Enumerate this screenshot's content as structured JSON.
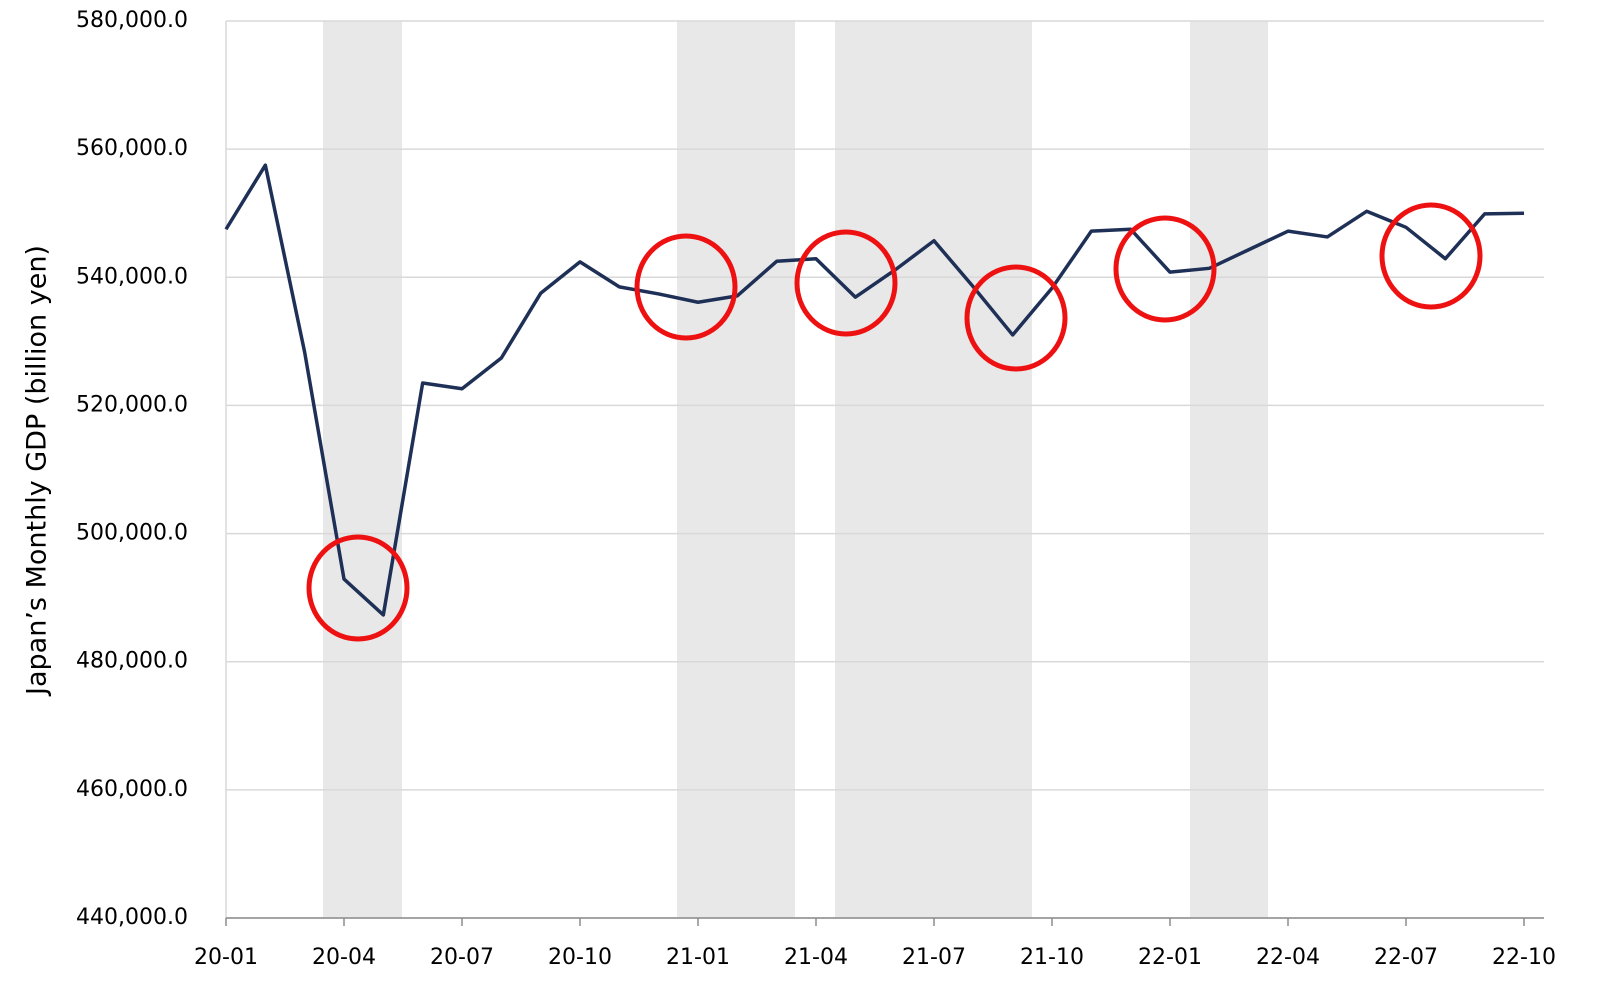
{
  "chart_data": {
    "type": "line",
    "y_label": "Japan’s Monthly GDP (billion yen)",
    "categories": [
      "20-01",
      null,
      null,
      "20-04",
      null,
      null,
      "20-07",
      null,
      null,
      "20-10",
      null,
      null,
      "21-01",
      null,
      null,
      "21-04",
      null,
      null,
      "21-07",
      null,
      null,
      "21-10",
      null,
      null,
      "22-01",
      null,
      null,
      "22-04",
      null,
      null,
      "22-07",
      null,
      null,
      "22-10"
    ],
    "values": [
      547500,
      557500,
      528300,
      492900,
      487300,
      523500,
      522600,
      527400,
      537500,
      542400,
      538500,
      537400,
      536100,
      537100,
      542500,
      542900,
      536900,
      541100,
      545700,
      538500,
      531000,
      538300,
      547200,
      547500,
      540800,
      541400,
      544300,
      547200,
      546300,
      550300,
      547800,
      542900,
      549900,
      550000
    ],
    "color": "#1f3057",
    "ylim": [
      440000,
      580000
    ],
    "yticks": [
      {
        "value": 440000,
        "label": "440,000.0"
      },
      {
        "value": 460000,
        "label": "460,000.0"
      },
      {
        "value": 480000,
        "label": "480,000.0"
      },
      {
        "value": 500000,
        "label": "500,000.0"
      },
      {
        "value": 520000,
        "label": "520,000.0"
      },
      {
        "value": 540000,
        "label": "540,000.0"
      },
      {
        "value": 560000,
        "label": "560,000.0"
      },
      {
        "value": 580000,
        "label": "580,000.0"
      }
    ],
    "grid": true
  }
}
